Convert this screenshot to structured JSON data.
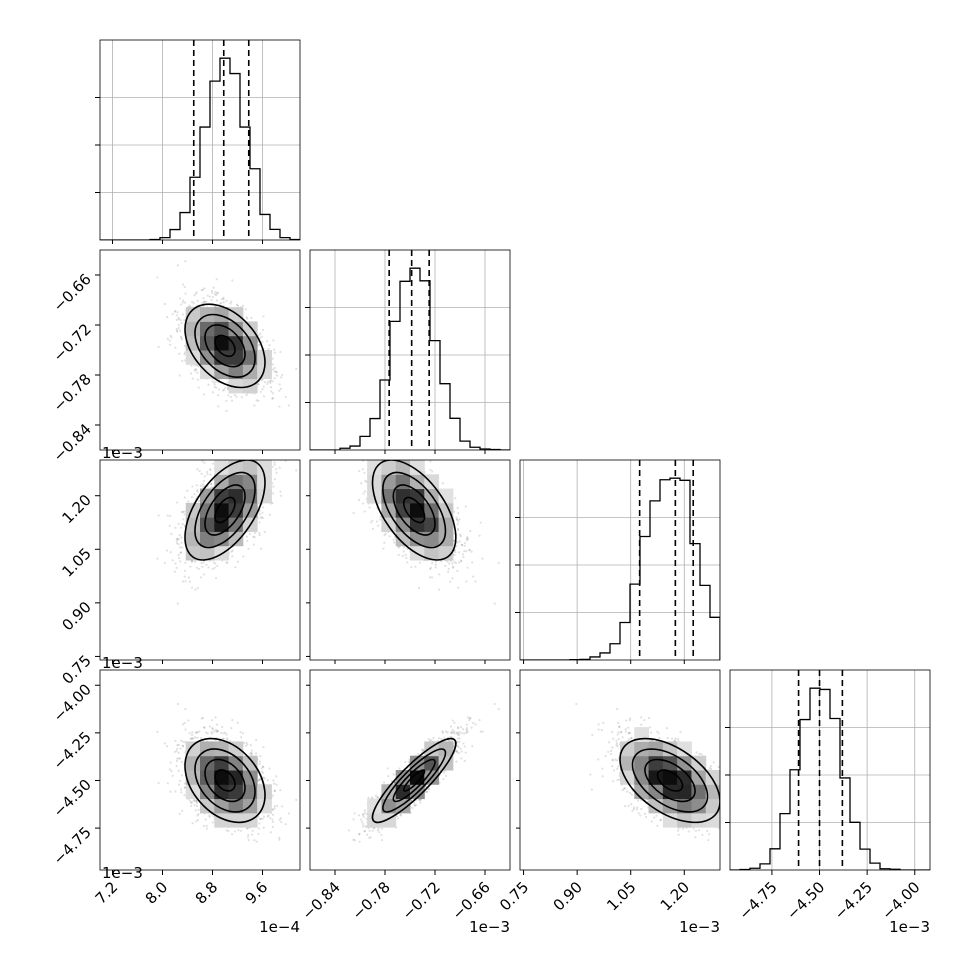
{
  "chart_data": {
    "type": "corner",
    "parameters": [
      {
        "ticks": [
          7.2,
          8.0,
          8.8,
          9.6
        ],
        "tick_labels": [
          "7.2",
          "8.0",
          "8.8",
          "9.6"
        ],
        "range": [
          7.0,
          10.2
        ],
        "offset_label": "1e−4",
        "mean": 9.0,
        "sd": 0.32,
        "quantiles": [
          8.5,
          8.98,
          9.38
        ]
      },
      {
        "ticks": [
          -0.84,
          -0.78,
          -0.72,
          -0.66
        ],
        "tick_labels": [
          "−0.84",
          "−0.78",
          "−0.72",
          "−0.66"
        ],
        "range": [
          -0.87,
          -0.63
        ],
        "offset_label": "1e−3",
        "mean": -0.745,
        "sd": 0.025,
        "quantiles": [
          -0.775,
          -0.748,
          -0.727
        ]
      },
      {
        "ticks": [
          0.75,
          0.9,
          1.05,
          1.2
        ],
        "tick_labels": [
          "0.75",
          "0.90",
          "1.05",
          "1.20"
        ],
        "range": [
          0.74,
          1.3
        ],
        "offset_label": "1e−3",
        "mean": 1.16,
        "sd": 0.07,
        "quantiles": [
          1.075,
          1.175,
          1.225
        ]
      },
      {
        "ticks": [
          -4.75,
          -4.5,
          -4.25,
          -4.0
        ],
        "tick_labels": [
          "−4.75",
          "−4.50",
          "−4.25",
          "−4.00"
        ],
        "range": [
          -4.97,
          -3.92
        ],
        "offset_label": "1e−3",
        "mean": -4.5,
        "sd": 0.11,
        "quantiles": [
          -4.61,
          -4.5,
          -4.38
        ]
      }
    ],
    "correlations": [
      [
        1,
        -0.4,
        0.55,
        -0.35
      ],
      [
        -0.4,
        1,
        -0.55,
        0.88
      ],
      [
        0.55,
        -0.55,
        1,
        -0.5
      ],
      [
        -0.35,
        0.88,
        -0.5,
        1
      ]
    ],
    "histogram_style": "step",
    "quantile_lines": "dashed",
    "contour_levels": 3,
    "grid": true
  }
}
